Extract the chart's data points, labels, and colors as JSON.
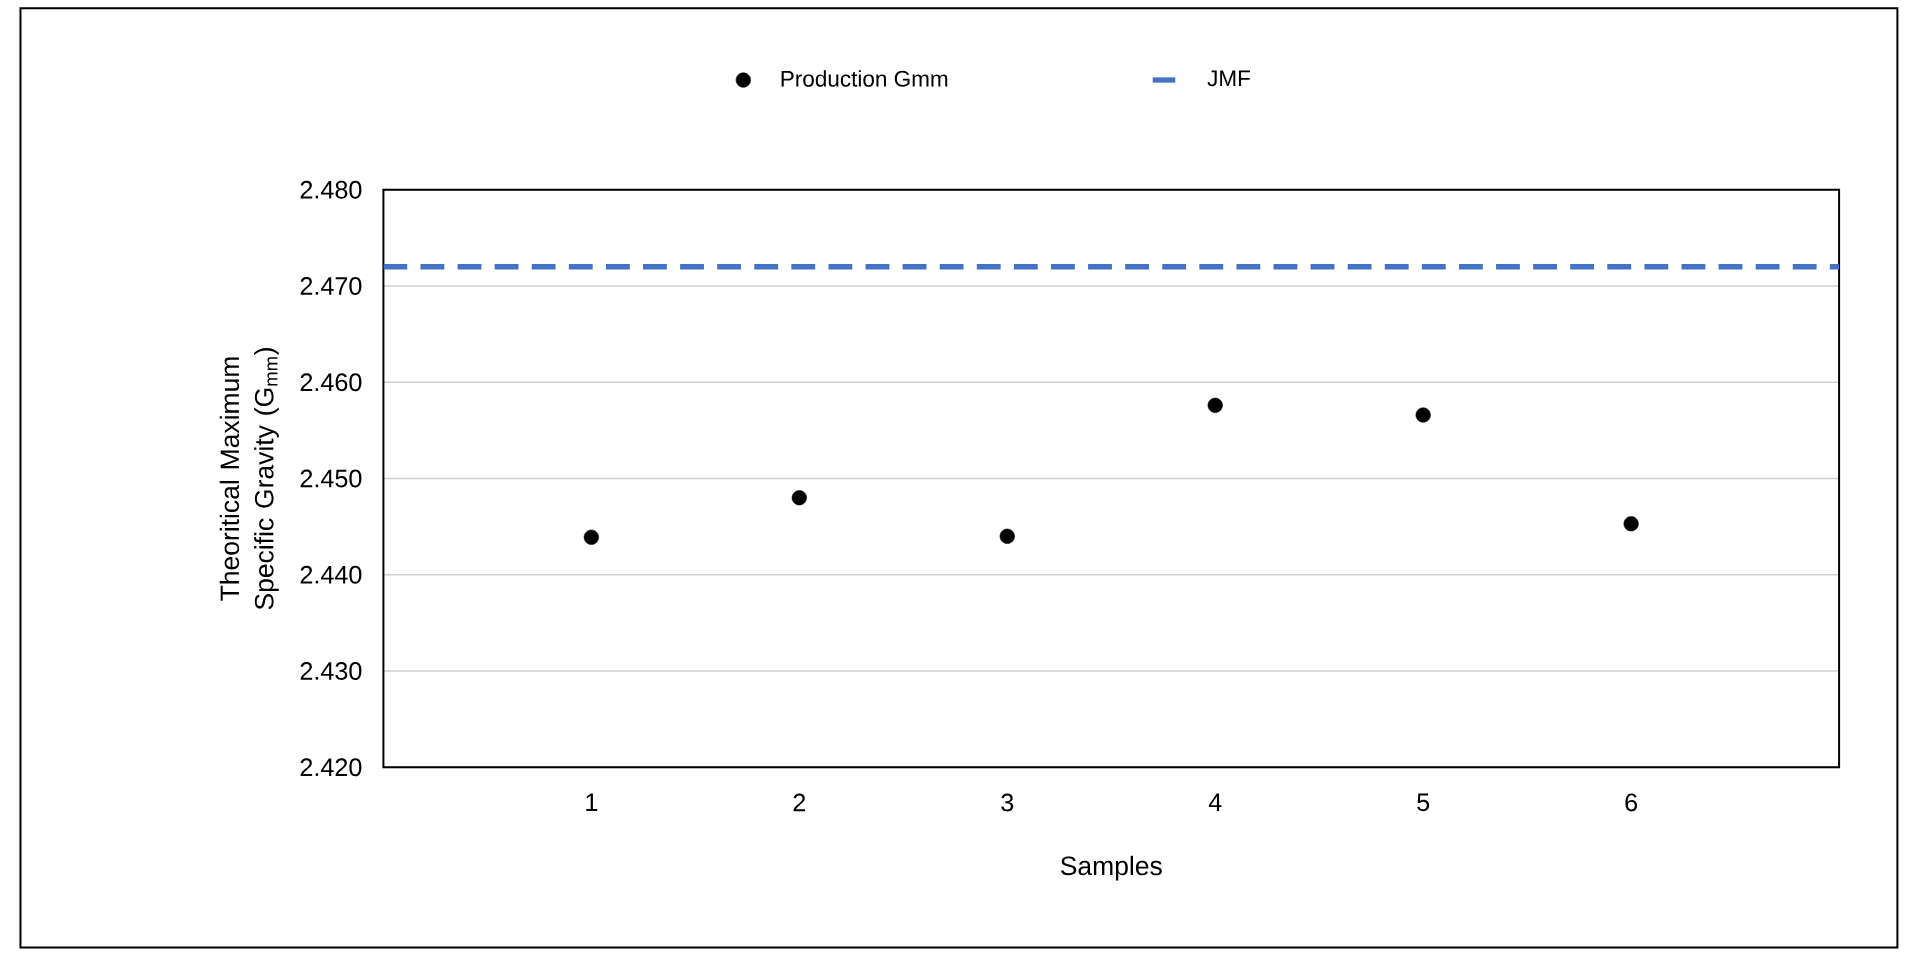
{
  "chart_data": {
    "type": "scatter",
    "xlabel": "Samples",
    "ylabel": "Theoritical Maximum Specific Gravity (G$_{mm}$)",
    "categories": [
      "1",
      "2",
      "3",
      "4",
      "5",
      "6"
    ],
    "series": [
      {
        "name": "Production Gmm",
        "color": "#000000",
        "values": [
          2.4439,
          2.448,
          2.444,
          2.4576,
          2.4566,
          2.4453
        ]
      }
    ],
    "ylim": [
      2.42,
      2.48
    ],
    "yticks": [
      {
        "value": 2.42,
        "label": "2.420"
      },
      {
        "value": 2.43,
        "label": "2.430"
      },
      {
        "value": 2.44,
        "label": "2.440"
      },
      {
        "value": 2.45,
        "label": "2.450"
      },
      {
        "value": 2.46,
        "label": "2.460"
      },
      {
        "value": 2.47,
        "label": "2.470"
      },
      {
        "value": 2.48,
        "label": "2.480"
      }
    ],
    "ref_lines": [
      {
        "axis": "y",
        "value": 2.472,
        "label": "JMF",
        "color": "#4472c4",
        "line_style": "dashed"
      }
    ],
    "grid": "y",
    "legend": "top"
  }
}
